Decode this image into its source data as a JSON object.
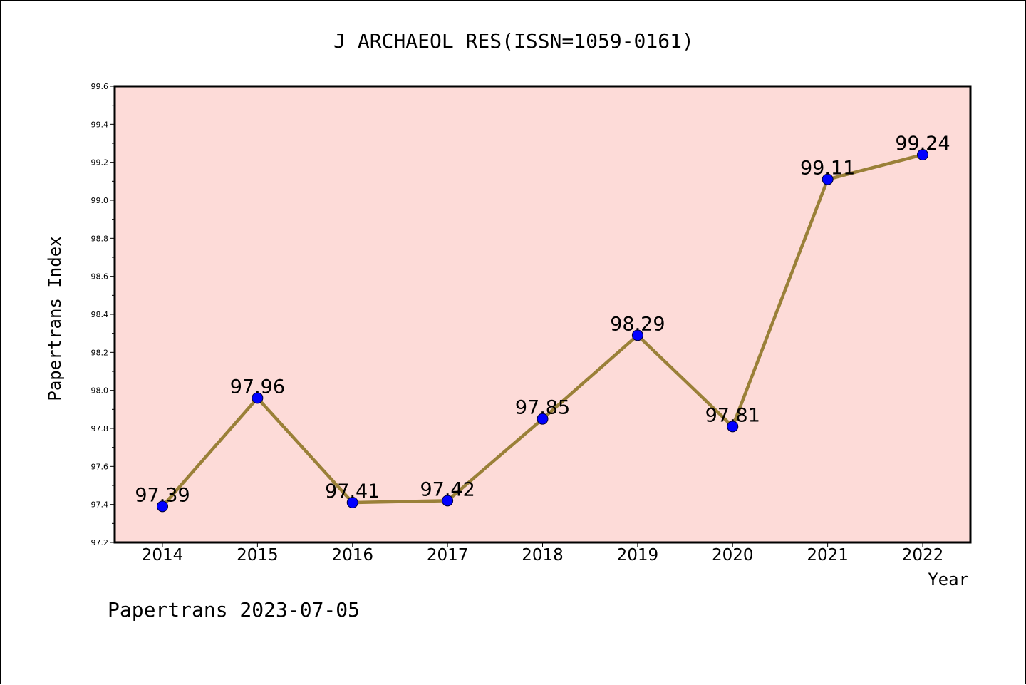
{
  "chart_data": {
    "type": "line",
    "title": "J ARCHAEOL RES(ISSN=1059-0161)",
    "xlabel": "Year",
    "ylabel": "Papertrans Index",
    "categories": [
      "2014",
      "2015",
      "2016",
      "2017",
      "2018",
      "2019",
      "2020",
      "2021",
      "2022"
    ],
    "series": [
      {
        "values": [
          97.39,
          97.96,
          97.41,
          97.42,
          97.85,
          98.29,
          97.81,
          99.11,
          99.24
        ]
      }
    ],
    "data_labels": [
      "97.39",
      "97.96",
      "97.41",
      "97.42",
      "97.85",
      "98.29",
      "97.81",
      "99.11",
      "99.24"
    ],
    "ylim": [
      97.2,
      99.6
    ],
    "yticks": [
      "97.2",
      "97.4",
      "97.6",
      "97.8",
      "98.0",
      "98.2",
      "98.4",
      "98.6",
      "98.8",
      "99.0",
      "99.2",
      "99.4",
      "99.6"
    ],
    "grid": false,
    "legend": "none",
    "colors": {
      "plot_background": "#fddbd8",
      "line": "#9a8038",
      "marker": "#0000ff",
      "axis": "#000000"
    }
  },
  "footer": "Papertrans 2023-07-05"
}
